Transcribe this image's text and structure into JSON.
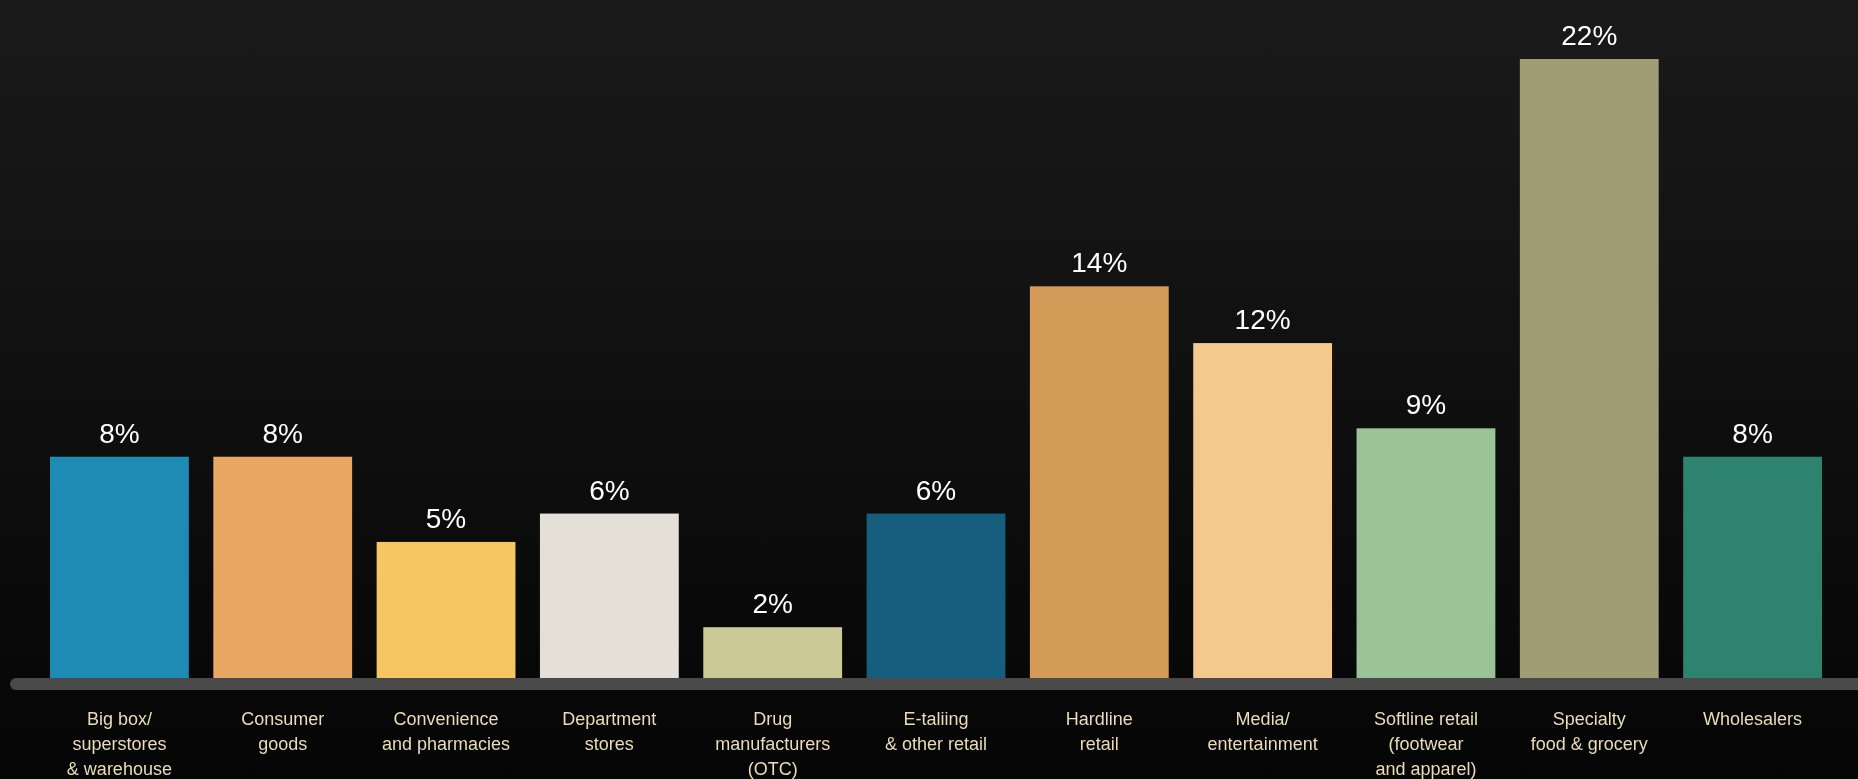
{
  "chart_data": {
    "type": "bar",
    "categories": [
      "Big box/\nsuperstores\n& warehouse",
      "Consumer\ngoods",
      "Convenience\nand pharmacies",
      "Department\nstores",
      "Drug\nmanufacturers\n(OTC)",
      "E-taliing\n& other retail",
      "Hardline\nretail",
      "Media/\nentertainment",
      "Softline retail\n(footwear\nand apparel)",
      "Specialty\nfood & grocery",
      "Wholesalers"
    ],
    "values": [
      8,
      8,
      5,
      6,
      2,
      6,
      14,
      12,
      9,
      22,
      8
    ],
    "colors": [
      "#1e8bb5",
      "#e8a762",
      "#f5c662",
      "#e4e0d8",
      "#cbc995",
      "#165e7e",
      "#d49a57",
      "#f5c98d",
      "#9cc298",
      "#a09c73",
      "#2e8370"
    ],
    "data_labels": true,
    "value_labels": [
      "8%",
      "8%",
      "5%",
      "6%",
      "2%",
      "6%",
      "14%",
      "12%",
      "9%",
      "22%",
      "8%"
    ]
  }
}
